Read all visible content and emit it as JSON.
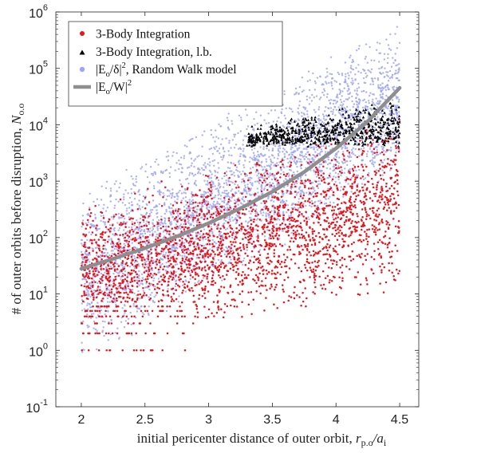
{
  "chart_data": {
    "type": "scatter",
    "title": "",
    "xlabel": "initial pericenter distance of outer orbit, ",
    "xlabel_math": "r",
    "xlabel_math_sub": "p.o",
    "xlabel_math_tail": "/a",
    "xlabel_math_tail_sub": "i",
    "ylabel": "# of outer orbits before disruption, ",
    "ylabel_math": "N",
    "ylabel_math_sub": "o.o",
    "xlim": [
      1.8,
      4.65
    ],
    "ylim_log10": [
      -1,
      6
    ],
    "yscale": "log",
    "grid": false,
    "legend_position": "top-left",
    "x_ticks": [
      2,
      2.5,
      3,
      3.5,
      4,
      4.5
    ],
    "x_tick_labels": [
      "2",
      "2.5",
      "3",
      "3.5",
      "4",
      "4.5"
    ],
    "y_ticks_exp": [
      -1,
      0,
      1,
      2,
      3,
      4,
      5,
      6
    ],
    "y_tick_base": "10",
    "legend": [
      {
        "label": "3-Body Integration",
        "marker": "dot",
        "color": "#e8151b"
      },
      {
        "label": "3-Body Integration, l.b.",
        "marker": "triangle",
        "color": "#000000"
      },
      {
        "label_pre": "|E",
        "label_sub": "o",
        "label_mid": "/δ|",
        "label_sup": "2",
        "label_post": ", Random Walk model",
        "marker": "dot",
        "color": "#9da6f5"
      },
      {
        "label_pre": "|E",
        "label_sub": "o",
        "label_mid": "/W|",
        "label_sup": "2",
        "label_post": "",
        "marker": "line",
        "color": "#8e8e8e"
      }
    ],
    "series": [
      {
        "name": "3-Body Integration",
        "kind": "scatter-cloud",
        "color": "#e8151b",
        "count": 2600,
        "x_range": [
          2.0,
          4.5
        ],
        "band_log10_at_x2": [
          0.0,
          2.6
        ],
        "band_log10_at_x4_5": [
          1.0,
          4.2
        ],
        "discrete_levels_low_x": [
          1,
          2,
          3,
          4,
          5,
          6
        ]
      },
      {
        "name": "3-Body Integration, l.b.",
        "kind": "scatter-cloud",
        "color": "#000000",
        "count": 650,
        "x_range": [
          3.3,
          4.5
        ],
        "log10_range": [
          3.4,
          4.5
        ]
      },
      {
        "name": "|Eo/δ|^2, Random Walk model",
        "kind": "scatter-cloud",
        "color": "#9da6f5",
        "count": 3600,
        "x_range": [
          2.0,
          4.5
        ],
        "band_log10_at_x2": [
          -0.3,
          2.8
        ],
        "band_log10_at_x4_5": [
          3.0,
          5.9
        ]
      },
      {
        "name": "|Eo/W|^2",
        "kind": "line",
        "color": "#8e8e8e",
        "x": [
          2.0,
          2.25,
          2.5,
          2.75,
          3.0,
          3.25,
          3.5,
          3.75,
          4.0,
          4.25,
          4.5
        ],
        "y": [
          28,
          42,
          65,
          105,
          180,
          330,
          650,
          1450,
          3800,
          11500,
          45000
        ]
      }
    ]
  }
}
